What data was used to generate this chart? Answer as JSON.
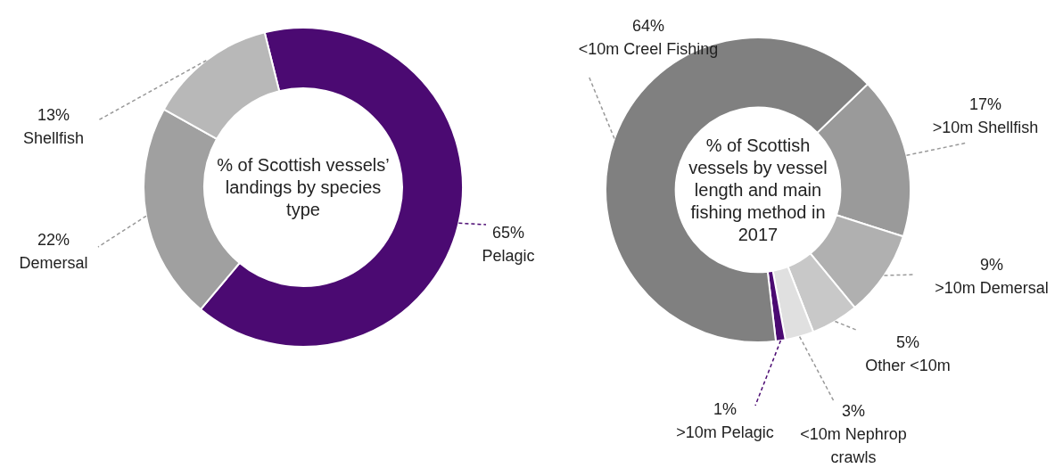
{
  "chart_data": [
    {
      "type": "donut",
      "title": "% of Scottish vessels’ landings by species type",
      "categories": [
        "Pelagic",
        "Demersal",
        "Shellfish"
      ],
      "values": [
        65,
        22,
        13
      ],
      "value_labels": [
        "65%",
        "22%",
        "13%"
      ],
      "colors": [
        "#4b0a72",
        "#a0a0a0",
        "#b8b8b8"
      ]
    },
    {
      "type": "donut",
      "title": "% of Scottish vessels by vessel length and main fishing method in 2017",
      "categories": [
        ">10m Shellfish",
        ">10m Demersal",
        "Other <10m",
        "<10m Nephrop crawls",
        ">10m Pelagic",
        "<10m Creel Fishing"
      ],
      "values": [
        17,
        9,
        5,
        3,
        1,
        64
      ],
      "value_labels": [
        "17%",
        "9%",
        "5%",
        "3%",
        "1%",
        "64%"
      ],
      "colors": [
        "#9a9a9a",
        "#b0b0b0",
        "#c8c8c8",
        "#e0e0e0",
        "#4b0a72",
        "#808080"
      ]
    }
  ]
}
